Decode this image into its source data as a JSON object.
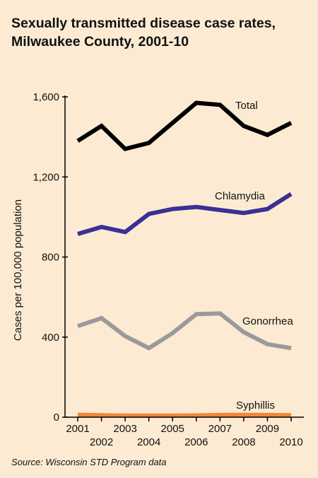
{
  "header": {
    "title_line1": "Sexually transmitted disease case rates,",
    "title_line2": "Milwaukee County, 2001-10"
  },
  "footer": {
    "source": "Source: Wisconsin STD Program data"
  },
  "chart_data": {
    "type": "line",
    "title": "Sexually transmitted disease case rates, Milwaukee County, 2001-10",
    "xlabel": "",
    "ylabel": "Cases per 100,000 population",
    "x": [
      "2001",
      "2002",
      "2003",
      "2004",
      "2005",
      "2006",
      "2007",
      "2008",
      "2009",
      "2010"
    ],
    "ylim": [
      0,
      1600
    ],
    "yticks": [
      0,
      400,
      800,
      1200,
      1600
    ],
    "ytick_labels": [
      "0",
      "400",
      "800",
      "1,200",
      "1,600"
    ],
    "grid": false,
    "legend": "inline labels next to each line",
    "series": [
      {
        "name": "Total",
        "color": "#000000",
        "values": [
          1380,
          1455,
          1340,
          1370,
          1470,
          1570,
          1560,
          1455,
          1410,
          1470
        ]
      },
      {
        "name": "Chlamydia",
        "color": "#3c2f96",
        "values": [
          915,
          950,
          925,
          1015,
          1040,
          1050,
          1035,
          1020,
          1040,
          1115
        ]
      },
      {
        "name": "Gonorrhea",
        "color": "#9a9a9a",
        "values": [
          455,
          495,
          405,
          345,
          420,
          515,
          518,
          425,
          365,
          345
        ]
      },
      {
        "name": "Syphillis",
        "color": "#f2863a",
        "values": [
          12,
          10,
          8,
          8,
          8,
          9,
          11,
          12,
          11,
          10
        ]
      }
    ]
  }
}
